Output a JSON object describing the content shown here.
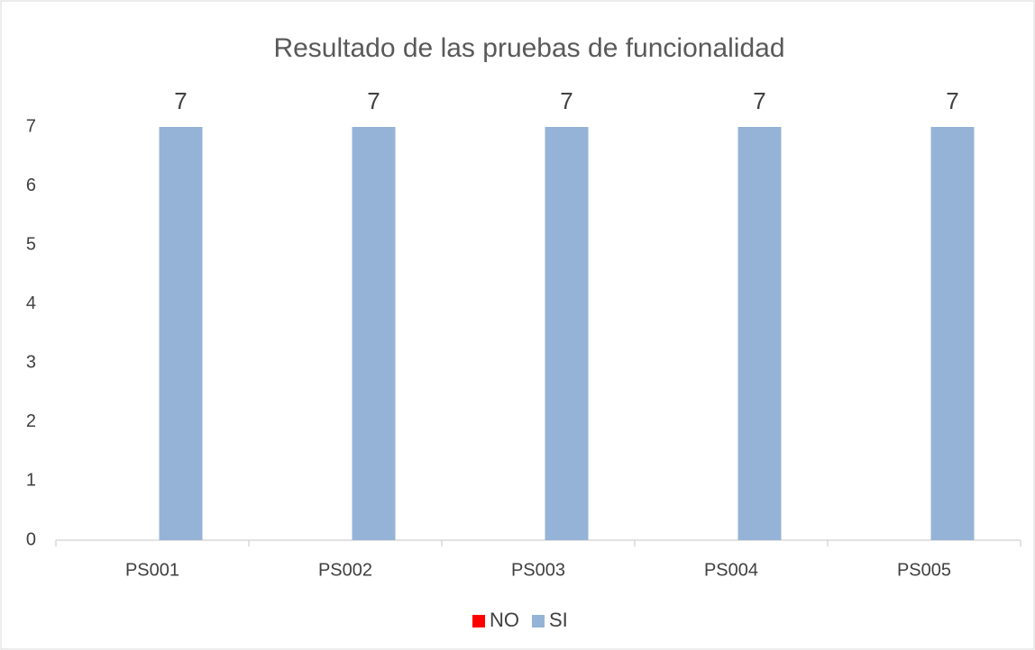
{
  "chart_data": {
    "type": "bar",
    "title": "Resultado de las pruebas de funcionalidad",
    "categories": [
      "PS001",
      "PS002",
      "PS003",
      "PS004",
      "PS005"
    ],
    "series": [
      {
        "name": "NO",
        "color": "#ff0000",
        "values": [
          0,
          0,
          0,
          0,
          0
        ],
        "show_labels": false
      },
      {
        "name": "SI",
        "color": "#95b3d7",
        "values": [
          7,
          7,
          7,
          7,
          7
        ],
        "show_labels": true
      }
    ],
    "ylim": [
      0,
      7
    ],
    "yticks": [
      0,
      1,
      2,
      3,
      4,
      5,
      6,
      7
    ],
    "grid": false,
    "legend": "bottom"
  }
}
